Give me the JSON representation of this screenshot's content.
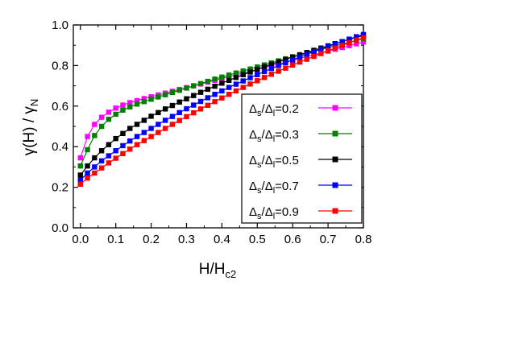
{
  "chart_data": {
    "type": "line",
    "xlabel": "H/H",
    "xlabel_sub": "c2",
    "ylabel": "γ(H) / γ",
    "ylabel_sub": "N",
    "xlim": [
      -0.02,
      0.8
    ],
    "ylim": [
      0.0,
      1.0
    ],
    "xticks": [
      "0.0",
      "0.1",
      "0.2",
      "0.3",
      "0.4",
      "0.5",
      "0.6",
      "0.7",
      "0.8"
    ],
    "yticks": [
      "0.0",
      "0.2",
      "0.4",
      "0.6",
      "0.8",
      "1.0"
    ],
    "legend_position": "right",
    "x": [
      0.0,
      0.02,
      0.04,
      0.06,
      0.08,
      0.1,
      0.12,
      0.14,
      0.16,
      0.18,
      0.2,
      0.22,
      0.24,
      0.26,
      0.28,
      0.3,
      0.32,
      0.34,
      0.36,
      0.38,
      0.4,
      0.42,
      0.44,
      0.46,
      0.48,
      0.5,
      0.52,
      0.54,
      0.56,
      0.58,
      0.6,
      0.62,
      0.64,
      0.66,
      0.68,
      0.7,
      0.72,
      0.74,
      0.76,
      0.78,
      0.8
    ],
    "series": [
      {
        "name": "Δs/Δl=0.2",
        "label_main": "Δ",
        "label_sub1": "s",
        "label_mid": "/Δ",
        "label_sub2": "l",
        "label_value": "=0.2",
        "color": "#ff00ff",
        "values": [
          0.345,
          0.45,
          0.51,
          0.545,
          0.57,
          0.59,
          0.605,
          0.617,
          0.627,
          0.637,
          0.646,
          0.655,
          0.664,
          0.673,
          0.682,
          0.691,
          0.7,
          0.709,
          0.718,
          0.727,
          0.736,
          0.745,
          0.754,
          0.763,
          0.772,
          0.781,
          0.79,
          0.799,
          0.808,
          0.817,
          0.826,
          0.835,
          0.844,
          0.853,
          0.862,
          0.871,
          0.88,
          0.889,
          0.898,
          0.907,
          0.916
        ]
      },
      {
        "name": "Δs/Δl=0.3",
        "label_main": "Δ",
        "label_sub1": "s",
        "label_mid": "/Δ",
        "label_sub2": "l",
        "label_value": "=0.3",
        "color": "#008000",
        "values": [
          0.305,
          0.385,
          0.455,
          0.5,
          0.535,
          0.56,
          0.58,
          0.596,
          0.61,
          0.622,
          0.634,
          0.645,
          0.656,
          0.667,
          0.678,
          0.689,
          0.7,
          0.711,
          0.722,
          0.733,
          0.743,
          0.753,
          0.763,
          0.773,
          0.783,
          0.793,
          0.803,
          0.813,
          0.823,
          0.833,
          0.843,
          0.852,
          0.861,
          0.87,
          0.879,
          0.888,
          0.897,
          0.906,
          0.915,
          0.924,
          0.933
        ]
      },
      {
        "name": "Δs/Δl=0.5",
        "label_main": "Δ",
        "label_sub1": "s",
        "label_mid": "/Δ",
        "label_sub2": "l",
        "label_value": "=0.5",
        "color": "#000000",
        "values": [
          0.26,
          0.305,
          0.345,
          0.38,
          0.41,
          0.44,
          0.465,
          0.49,
          0.51,
          0.53,
          0.55,
          0.568,
          0.586,
          0.603,
          0.62,
          0.636,
          0.652,
          0.668,
          0.683,
          0.698,
          0.713,
          0.727,
          0.741,
          0.755,
          0.768,
          0.781,
          0.794,
          0.806,
          0.818,
          0.83,
          0.842,
          0.853,
          0.864,
          0.875,
          0.886,
          0.897,
          0.908,
          0.918,
          0.928,
          0.938,
          0.948
        ]
      },
      {
        "name": "Δs/Δl=0.7",
        "label_main": "Δ",
        "label_sub1": "s",
        "label_mid": "/Δ",
        "label_sub2": "l",
        "label_value": "=0.7",
        "color": "#0000ff",
        "values": [
          0.235,
          0.27,
          0.3,
          0.33,
          0.355,
          0.38,
          0.405,
          0.428,
          0.45,
          0.47,
          0.49,
          0.51,
          0.53,
          0.549,
          0.568,
          0.587,
          0.605,
          0.623,
          0.641,
          0.658,
          0.675,
          0.692,
          0.708,
          0.724,
          0.74,
          0.755,
          0.77,
          0.785,
          0.8,
          0.814,
          0.828,
          0.842,
          0.855,
          0.868,
          0.881,
          0.894,
          0.906,
          0.918,
          0.93,
          0.942,
          0.953
        ]
      },
      {
        "name": "Δs/Δl=0.9",
        "label_main": "Δ",
        "label_sub1": "s",
        "label_mid": "/Δ",
        "label_sub2": "l",
        "label_value": "=0.9",
        "color": "#ff0000",
        "values": [
          0.215,
          0.245,
          0.27,
          0.295,
          0.32,
          0.343,
          0.366,
          0.388,
          0.41,
          0.43,
          0.45,
          0.47,
          0.49,
          0.51,
          0.529,
          0.548,
          0.567,
          0.586,
          0.604,
          0.622,
          0.64,
          0.658,
          0.675,
          0.692,
          0.709,
          0.725,
          0.741,
          0.757,
          0.772,
          0.787,
          0.802,
          0.817,
          0.831,
          0.845,
          0.859,
          0.873,
          0.886,
          0.899,
          0.912,
          0.925,
          0.937
        ]
      }
    ]
  }
}
